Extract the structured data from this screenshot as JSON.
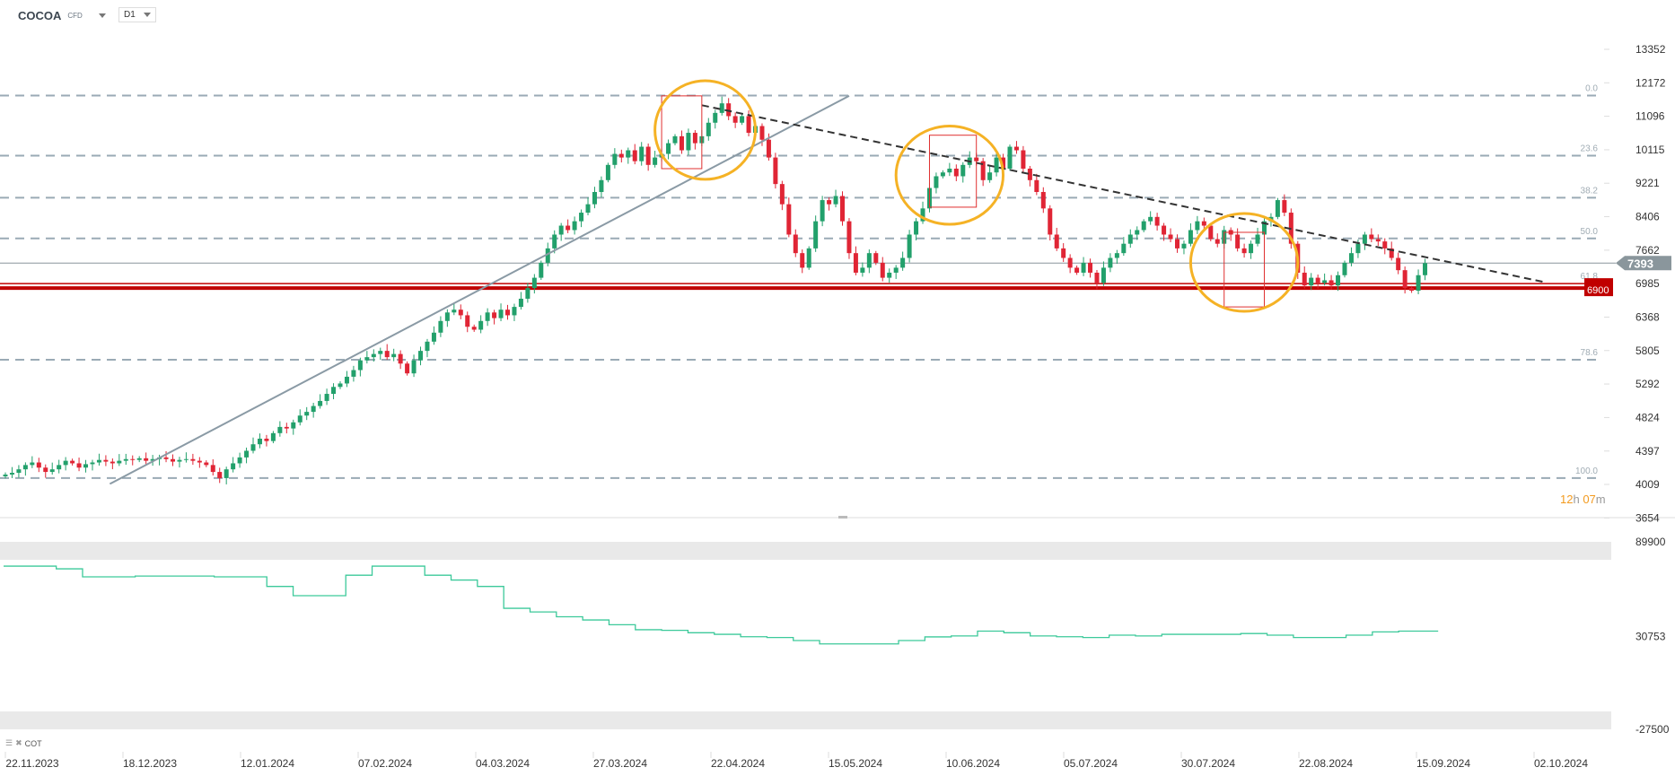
{
  "header": {
    "symbol": "COCOA",
    "instrument_type": "CFD",
    "timeframe": "D1"
  },
  "countdown": {
    "hours": "12",
    "h_unit": "h",
    "minutes": "07",
    "m_unit": "m"
  },
  "indicator": {
    "name": "COT"
  },
  "colors": {
    "up": "#22a06b",
    "down": "#e02535",
    "fib": "#9aaab5",
    "support": "#c00000",
    "circle": "#f5b225",
    "price_line": "#8a969c"
  },
  "chart_data": [
    {
      "type": "candlestick",
      "title": "COCOA CFD D1",
      "scale": "log",
      "ylim": [
        3654,
        13352
      ],
      "y_ticks": [
        "13352",
        "12172",
        "11096",
        "10115",
        "9221",
        "8406",
        "7662",
        "6985",
        "6368",
        "5805",
        "5292",
        "4824",
        "4397",
        "4009",
        "3654"
      ],
      "x_ticks": [
        "22.11.2023",
        "18.12.2023",
        "12.01.2024",
        "07.02.2024",
        "04.03.2024",
        "27.03.2024",
        "22.04.2024",
        "15.05.2024",
        "10.06.2024",
        "05.07.2024",
        "30.07.2024",
        "22.08.2024",
        "15.09.2024",
        "02.10.2024"
      ],
      "first_open": 4100,
      "close": [
        4120,
        4140,
        4180,
        4230,
        4260,
        4200,
        4150,
        4180,
        4230,
        4280,
        4250,
        4200,
        4240,
        4260,
        4290,
        4270,
        4250,
        4280,
        4300,
        4290,
        4310,
        4280,
        4300,
        4320,
        4300,
        4270,
        4290,
        4300,
        4280,
        4260,
        4230,
        4150,
        4080,
        4180,
        4250,
        4320,
        4400,
        4480,
        4550,
        4520,
        4620,
        4700,
        4680,
        4760,
        4850,
        4900,
        4980,
        5050,
        5150,
        5250,
        5300,
        5400,
        5500,
        5650,
        5700,
        5750,
        5800,
        5700,
        5750,
        5600,
        5450,
        5650,
        5800,
        5950,
        6100,
        6300,
        6450,
        6500,
        6400,
        6200,
        6150,
        6300,
        6450,
        6350,
        6500,
        6400,
        6550,
        6700,
        6900,
        7100,
        7400,
        7700,
        8000,
        8200,
        8100,
        8300,
        8500,
        8700,
        9000,
        9300,
        9700,
        10000,
        9900,
        10100,
        9800,
        10200,
        9700,
        9900,
        10000,
        10300,
        10500,
        10100,
        10600,
        10300,
        10500,
        10900,
        11200,
        11500,
        11100,
        10900,
        11100,
        10600,
        10800,
        10400,
        9900,
        9200,
        8700,
        8000,
        7600,
        7300,
        7700,
        8300,
        8800,
        8700,
        8900,
        8300,
        7600,
        7200,
        7300,
        7600,
        7400,
        7100,
        7200,
        7300,
        7500,
        8000,
        8300,
        8600,
        9100,
        9400,
        9500,
        9600,
        9400,
        9700,
        9900,
        9800,
        9300,
        9500,
        9900,
        9600,
        10200,
        10100,
        9600,
        9300,
        9000,
        8600,
        8000,
        7700,
        7500,
        7300,
        7200,
        7400,
        7200,
        7000,
        7300,
        7500,
        7600,
        7800,
        8000,
        8100,
        8300,
        8400,
        8200,
        8000,
        7900,
        7700,
        7800,
        8100,
        8300,
        8200,
        7900,
        7800,
        8100,
        8000,
        7700,
        7600,
        7800,
        8000,
        8300,
        8400,
        8800,
        8500,
        7800,
        7200,
        6950,
        7100,
        7000,
        7050,
        6950,
        7150,
        7400,
        7600,
        7800,
        8000,
        7900,
        7850,
        7700,
        7500,
        7250,
        6900,
        6850,
        7150,
        7393
      ],
      "current_price": {
        "value": 7393,
        "label": "7393"
      },
      "support": {
        "value": 6900,
        "label": "6900"
      },
      "support_upper": 6985,
      "fib_levels": [
        {
          "label": "0.0",
          "price": 11750
        },
        {
          "label": "23.6",
          "price": 9950
        },
        {
          "label": "38.2",
          "price": 8860
        },
        {
          "label": "50.0",
          "price": 7915
        },
        {
          "label": "61.8",
          "price": 6985
        },
        {
          "label": "78.6",
          "price": 5660
        },
        {
          "label": "100.0",
          "price": 4080
        }
      ],
      "trendlines": [
        {
          "name": "rising-trendline",
          "style": "solid",
          "from": [
            15.6,
            4015
          ],
          "to": [
            126,
            11740
          ]
        },
        {
          "name": "falling-trendline",
          "style": "dashed",
          "from": [
            104,
            11440
          ],
          "to": [
            230,
            7010
          ]
        }
      ],
      "circles": [
        {
          "bars": [
            97,
            112
          ],
          "prices": [
            12240,
            9320
          ]
        },
        {
          "bars": [
            133,
            149
          ],
          "prices": [
            10800,
            8230
          ]
        },
        {
          "bars": [
            177,
            193
          ],
          "prices": [
            8480,
            6470
          ]
        }
      ],
      "boxes": [
        {
          "bars": [
            98,
            104
          ],
          "prices": [
            11740,
            9600
          ]
        },
        {
          "bars": [
            138,
            145
          ],
          "prices": [
            10530,
            8630
          ]
        },
        {
          "bars": [
            182,
            188
          ],
          "prices": [
            8050,
            6550
          ]
        }
      ]
    },
    {
      "type": "line",
      "title": "COT",
      "ylim": [
        -27500,
        89900
      ],
      "y_ticks": [
        "89900",
        "30753",
        "-27500"
      ],
      "values": [
        74700,
        74700,
        73000,
        68000,
        68000,
        68500,
        68500,
        68500,
        68000,
        68000,
        62000,
        56200,
        56200,
        69000,
        74700,
        74700,
        69000,
        66000,
        62000,
        48300,
        46000,
        43000,
        41000,
        38000,
        34900,
        34500,
        33000,
        32000,
        30500,
        30000,
        28100,
        26000,
        26000,
        26000,
        28100,
        30400,
        31000,
        34000,
        33000,
        31000,
        30500,
        30000,
        31500,
        31000,
        32000,
        32000,
        32000,
        32500,
        31500,
        30000,
        30000,
        31500,
        33500,
        34000,
        34000
      ]
    }
  ]
}
